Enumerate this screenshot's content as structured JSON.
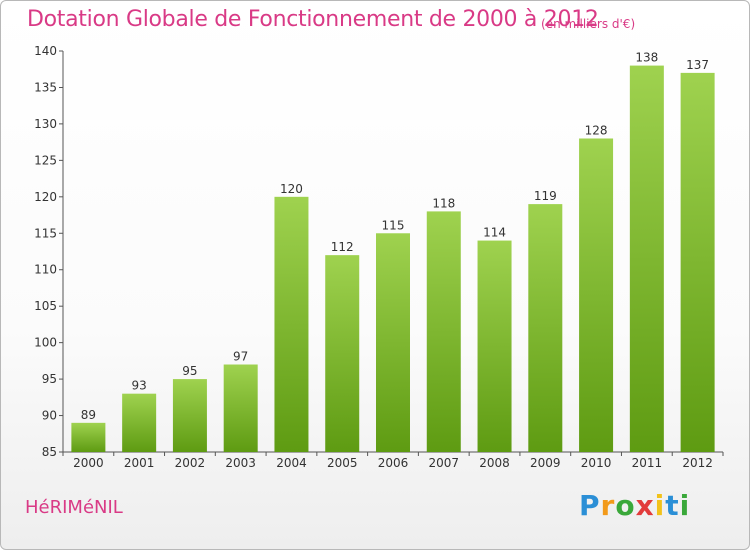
{
  "header": {
    "title": "Dotation Globale de Fonctionnement de 2000 à 2012",
    "subtitle": "(en milliers d'€)"
  },
  "footer": {
    "commune": "HéRIMéNIL",
    "brand_letters": [
      {
        "char": "P",
        "color": "#2b8fd6"
      },
      {
        "char": "r",
        "color": "#f29a1a"
      },
      {
        "char": "o",
        "color": "#3aa83a"
      },
      {
        "char": "x",
        "color": "#e23b3b"
      },
      {
        "char": "i",
        "color": "#f2c21a"
      },
      {
        "char": "t",
        "color": "#2b8fd6"
      },
      {
        "char": "i",
        "color": "#3aa83a"
      }
    ]
  },
  "colors": {
    "bar_top": "#9fd24f",
    "bar_bottom": "#5e9b12",
    "title": "#d93a86"
  },
  "chart_data": {
    "type": "bar",
    "categories": [
      "2000",
      "2001",
      "2002",
      "2003",
      "2004",
      "2005",
      "2006",
      "2007",
      "2008",
      "2009",
      "2010",
      "2011",
      "2012"
    ],
    "values": [
      89,
      93,
      95,
      97,
      120,
      112,
      115,
      118,
      114,
      119,
      128,
      138,
      137
    ],
    "title": "Dotation Globale de Fonctionnement de 2000 à 2012",
    "xlabel": "",
    "ylabel": "",
    "ylim": [
      85,
      140
    ],
    "yticks": [
      85,
      90,
      95,
      100,
      105,
      110,
      115,
      120,
      125,
      130,
      135,
      140
    ],
    "grid": false,
    "data_labels": true
  }
}
